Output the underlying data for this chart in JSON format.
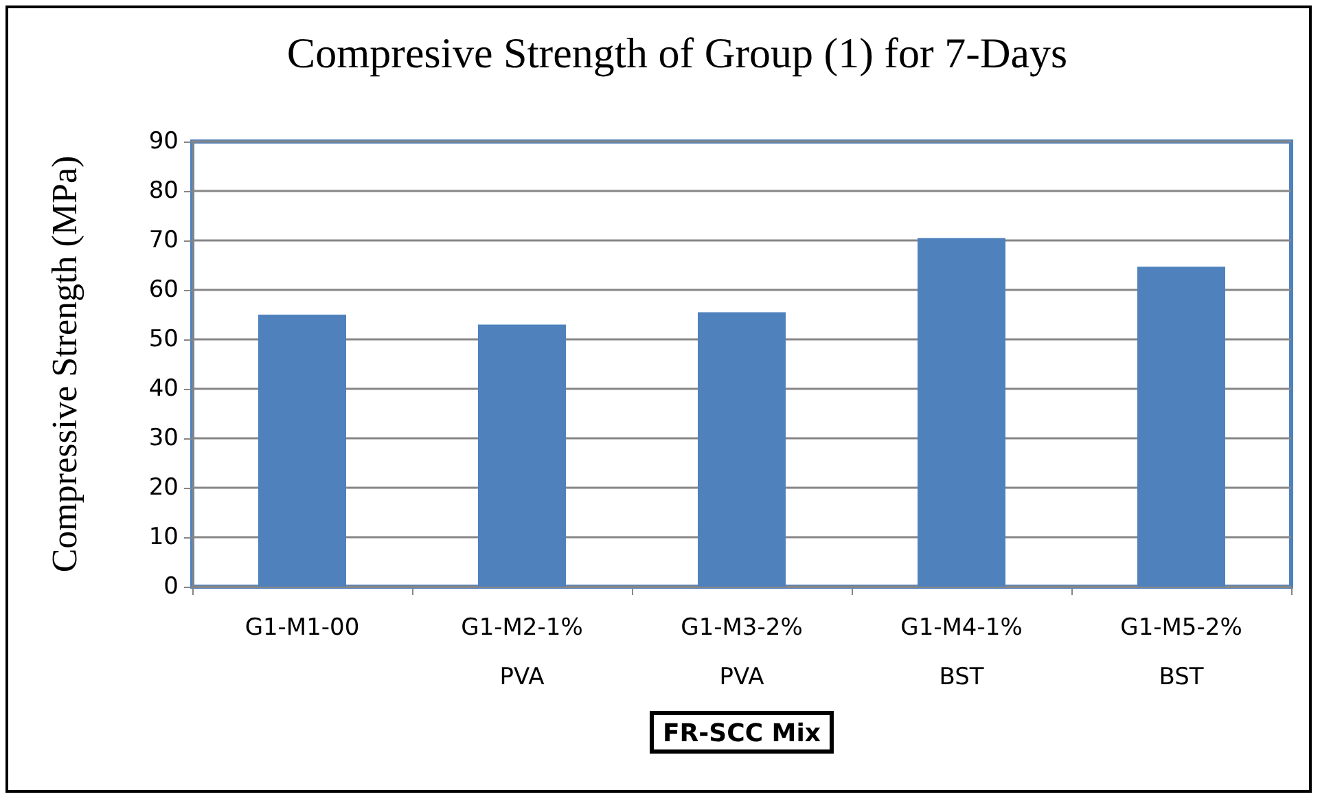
{
  "chart_data": {
    "type": "bar",
    "title": "Compresive Strength of Group (1) for 7-Days",
    "xlabel": "FR-SCC Mix",
    "ylabel": "Compressive Strength (MPa)",
    "categories": [
      "G1-M1-00",
      "G1-M2-1%\nPVA",
      "G1-M3-2%\nPVA",
      "G1-M4-1%\nBST",
      "G1-M5-2%\nBST"
    ],
    "values": [
      55,
      53,
      55.5,
      70.5,
      64.7
    ],
    "color": "#4f81bd",
    "ylim": [
      0,
      90
    ],
    "yticks": [
      0,
      10,
      20,
      30,
      40,
      50,
      60,
      70,
      80,
      90
    ],
    "grid": "y"
  }
}
